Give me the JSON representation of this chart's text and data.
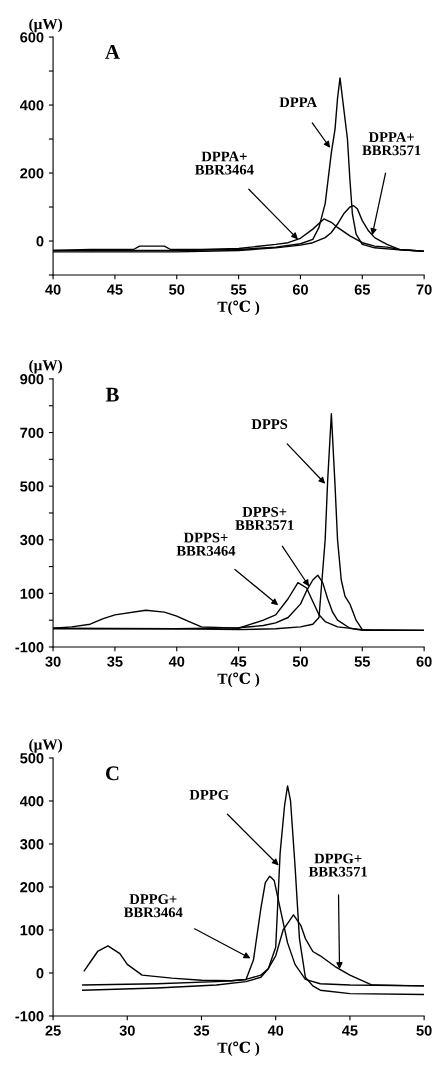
{
  "chart_data": [
    {
      "type": "line",
      "title": "A",
      "xlabel": "T(℃ )",
      "ylabel": "(μW)",
      "xlim": [
        40,
        70
      ],
      "ylim": [
        -100,
        600
      ],
      "xticks": [
        40,
        45,
        50,
        55,
        60,
        65,
        70
      ],
      "yticks": [
        {
          "value": -100,
          "label": null
        },
        0,
        {
          "value": 100,
          "label": null
        },
        200,
        {
          "value": 300,
          "label": null
        },
        400,
        {
          "value": 500,
          "label": null
        },
        600
      ],
      "series": [
        {
          "color": "#000000",
          "x": [
            40,
            50,
            55,
            58,
            60,
            61,
            61.5,
            62,
            62.5,
            62.8,
            63,
            63.2,
            63.4,
            63.6,
            63.8,
            64.0,
            64.2,
            64.5,
            65,
            66,
            68,
            70
          ],
          "values": [
            -28,
            -28,
            -25,
            -18,
            -8,
            5,
            40,
            110,
            260,
            330,
            420,
            480,
            420,
            360,
            300,
            180,
            80,
            20,
            -10,
            -20,
            -26,
            -30
          ]
        },
        {
          "color": "#000000",
          "x": [
            40,
            43,
            46.5,
            47,
            49,
            49.5,
            52,
            55,
            56,
            58,
            59,
            60,
            61,
            61.9,
            62.5,
            63,
            64,
            65,
            66,
            67,
            68,
            70
          ],
          "values": [
            -28,
            -25,
            -25,
            -15,
            -15,
            -25,
            -25,
            -22,
            -18,
            -10,
            -5,
            8,
            35,
            65,
            55,
            40,
            15,
            -5,
            -15,
            -18,
            -25,
            -30
          ]
        },
        {
          "color": "#000000",
          "x": [
            40,
            50,
            55,
            58,
            60,
            61,
            62,
            62.5,
            63,
            63.5,
            64,
            64.3,
            64.6,
            65,
            65.5,
            66,
            66.5,
            67,
            68,
            70
          ],
          "values": [
            -32,
            -32,
            -28,
            -20,
            -12,
            -5,
            10,
            25,
            50,
            80,
            100,
            104,
            95,
            60,
            30,
            10,
            0,
            -10,
            -25,
            -30
          ]
        }
      ],
      "annotations": [
        {
          "text": "DPPA",
          "x": 62.4,
          "y": 274
        },
        {
          "text": "DPPA+\nBBR3464",
          "x": 59.8,
          "y": 5
        },
        {
          "text": "DPPA+\nBBR3571",
          "x": 65.8,
          "y": 17
        }
      ]
    },
    {
      "type": "line",
      "title": "B",
      "xlabel": "T(℃ )",
      "ylabel": "(μW)",
      "xlim": [
        30,
        60
      ],
      "ylim": [
        -100,
        900
      ],
      "xticks": [
        30,
        35,
        40,
        45,
        50,
        55,
        60
      ],
      "yticks": [
        -100,
        {
          "value": 0,
          "label": null
        },
        100,
        {
          "value": 200,
          "label": null
        },
        300,
        {
          "value": 400,
          "label": null
        },
        500,
        {
          "value": 600,
          "label": null
        },
        700,
        {
          "value": 800,
          "label": null
        },
        900
      ],
      "series": [
        {
          "color": "#000000",
          "x": [
            30,
            40,
            45,
            48,
            50,
            51,
            51.5,
            52,
            52.2,
            52.5,
            52.8,
            53,
            53.3,
            53.6,
            54,
            54.5,
            55,
            56,
            60
          ],
          "values": [
            -30,
            -32,
            -35,
            -32,
            -25,
            -15,
            10,
            300,
            520,
            770,
            500,
            300,
            150,
            90,
            60,
            0,
            -35,
            -38,
            -38
          ]
        },
        {
          "color": "#000000",
          "x": [
            30,
            40,
            45,
            47,
            48,
            49,
            50,
            50.5,
            51,
            51.4,
            51.8,
            52.2,
            52.6,
            53,
            54,
            55,
            60
          ],
          "values": [
            -32,
            -32,
            -28,
            -20,
            -10,
            10,
            60,
            110,
            150,
            168,
            140,
            80,
            30,
            0,
            -30,
            -38,
            -38
          ]
        },
        {
          "color": "#000000",
          "x": [
            30,
            31.5,
            33,
            34,
            35,
            37.5,
            39,
            40,
            41,
            42,
            45,
            46,
            47,
            48,
            49,
            49.8,
            50.5,
            51,
            51.5,
            52,
            53,
            55,
            60
          ],
          "values": [
            -30,
            -25,
            -15,
            5,
            20,
            37,
            30,
            15,
            -5,
            -25,
            -30,
            -15,
            0,
            20,
            80,
            140,
            120,
            70,
            20,
            -5,
            -25,
            -35,
            -38
          ]
        }
      ],
      "annotations": [
        {
          "text": "DPPS",
          "x": 52.0,
          "y": 509
        },
        {
          "text": "DPPS+\nBBR3571",
          "x": 50.7,
          "y": 126
        },
        {
          "text": "DPPS+\nBBR3464",
          "x": 48.2,
          "y": 56
        }
      ]
    },
    {
      "type": "line",
      "title": "C",
      "xlabel": "T(℃ )",
      "ylabel": "(μW)",
      "xlim": [
        25,
        50
      ],
      "ylim": [
        -100,
        500
      ],
      "xticks": [
        25,
        30,
        35,
        40,
        45,
        50
      ],
      "yticks": [
        -100,
        0,
        100,
        200,
        300,
        400,
        500
      ],
      "series": [
        {
          "color": "#000000",
          "x": [
            27,
            32,
            36,
            38,
            39,
            39.5,
            40,
            40.3,
            40.6,
            40.8,
            41.0,
            41.3,
            41.6,
            42,
            42.5,
            43,
            45,
            50
          ],
          "values": [
            -40,
            -35,
            -28,
            -20,
            -10,
            10,
            60,
            280,
            390,
            435,
            400,
            250,
            80,
            -10,
            -30,
            -40,
            -48,
            -50
          ]
        },
        {
          "color": "#000000",
          "x": [
            27.1,
            27.5,
            28,
            28.7,
            29.5,
            30,
            31,
            33,
            35,
            37,
            38,
            38.5,
            39,
            39.3,
            39.6,
            39.9,
            40.3,
            40.8,
            41.3,
            42,
            43,
            45,
            50
          ],
          "values": [
            5,
            25,
            50,
            63,
            45,
            20,
            -5,
            -12,
            -17,
            -18,
            -15,
            30,
            150,
            210,
            225,
            215,
            150,
            70,
            20,
            -15,
            -25,
            -28,
            -30
          ]
        },
        {
          "color": "#000000",
          "x": [
            27,
            32,
            36,
            37,
            38,
            39,
            39.5,
            40,
            40.5,
            41.2,
            41.7,
            42,
            42.5,
            43,
            44,
            45,
            46.5,
            50
          ],
          "values": [
            -28,
            -25,
            -20,
            -18,
            -15,
            -5,
            10,
            40,
            100,
            135,
            110,
            80,
            50,
            40,
            15,
            -5,
            -28,
            -30
          ]
        }
      ],
      "annotations": [
        {
          "text": "DPPG",
          "x": 40.2,
          "y": 250
        },
        {
          "text": "DPPG+\nBBR3464",
          "x": 38.3,
          "y": 34
        },
        {
          "text": "DPPG+\nBBR3571",
          "x": 44.3,
          "y": 9
        }
      ]
    }
  ]
}
